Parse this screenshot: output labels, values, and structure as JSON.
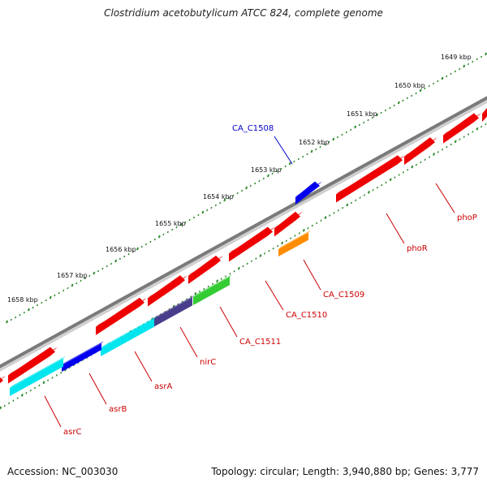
{
  "title": "Clostridium acetobutylicum ATCC 824, complete genome",
  "accession": "Accession: NC_003030",
  "topology": "Topology: circular; Length: 3,940,880 bp; Genes: 3,777",
  "kbp_ticks": [
    "1649 kbp",
    "1650 kbp",
    "1651 kbp",
    "1652 kbp",
    "1653 kbp",
    "1654 kbp",
    "1655 kbp",
    "1656 kbp",
    "1657 kbp",
    "1658 kbp"
  ],
  "genes": [
    {
      "name": "CA_C1508",
      "color": "#0000ee",
      "label_color": "#0000cc"
    },
    {
      "name": "phoP",
      "color": "#ee0000",
      "label_color": "#cc0000"
    },
    {
      "name": "phoR",
      "color": "#ee0000",
      "label_color": "#cc0000"
    },
    {
      "name": "CA_C1509",
      "color": "#ff8c00",
      "label_color": "#cc0000"
    },
    {
      "name": "CA_C1510",
      "color": "#ee0000",
      "label_color": "#cc0000"
    },
    {
      "name": "CA_C1511",
      "color": "#33cc33",
      "label_color": "#cc0000"
    },
    {
      "name": "nirC",
      "color": "#483d8b",
      "label_color": "#cc0000"
    },
    {
      "name": "asrA",
      "color": "#00e5ee",
      "label_color": "#cc0000"
    },
    {
      "name": "asrB",
      "color": "#0000ee",
      "label_color": "#cc0000"
    },
    {
      "name": "asrC",
      "color": "#00e5ee",
      "label_color": "#cc0000"
    }
  ],
  "colors": {
    "backbone": "#808080",
    "forward_feature": "#ee0000",
    "tick_outer": "#2e8b2e",
    "tick_inner": "#2e8b2e"
  }
}
